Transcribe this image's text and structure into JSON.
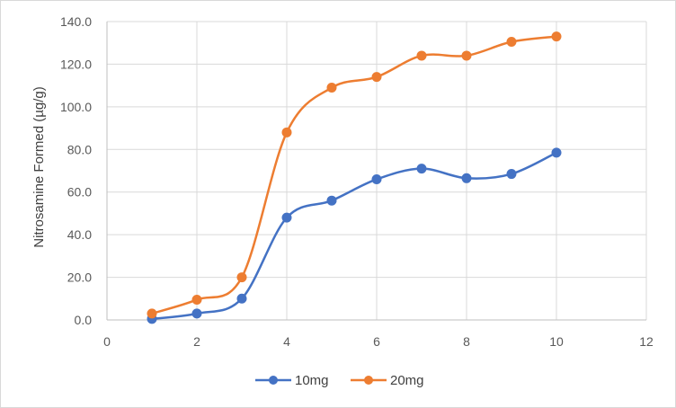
{
  "chart_data": {
    "type": "line",
    "title": "",
    "xlabel": "",
    "ylabel": "Nitrosamine Formed (µg/g)",
    "xlim": [
      0,
      12
    ],
    "ylim": [
      0,
      140
    ],
    "x_ticks": [
      0,
      2,
      4,
      6,
      8,
      10,
      12
    ],
    "x_tick_labels": [
      "0",
      "2",
      "4",
      "6",
      "8",
      "10",
      "12"
    ],
    "y_ticks": [
      0,
      20,
      40,
      60,
      80,
      100,
      120,
      140
    ],
    "y_tick_labels": [
      "0.0",
      "20.0",
      "40.0",
      "60.0",
      "80.0",
      "100.0",
      "120.0",
      "140.0"
    ],
    "grid": "vertical and horizontal major gridlines",
    "legend_position": "bottom",
    "smooth": true,
    "series": [
      {
        "name": "10mg",
        "color": "#4472C4",
        "points": [
          [
            1,
            0.5
          ],
          [
            2,
            3.0
          ],
          [
            3,
            10.0
          ],
          [
            4,
            48.0
          ],
          [
            5,
            56.0
          ],
          [
            6,
            66.0
          ],
          [
            7,
            71.0
          ],
          [
            8,
            66.5
          ],
          [
            9,
            68.5
          ],
          [
            10,
            78.5
          ]
        ]
      },
      {
        "name": "20mg",
        "color": "#ED7D31",
        "points": [
          [
            1,
            3.0
          ],
          [
            2,
            9.5
          ],
          [
            3,
            20.0
          ],
          [
            4,
            88.0
          ],
          [
            5,
            109.0
          ],
          [
            6,
            114.0
          ],
          [
            7,
            124.0
          ],
          [
            8,
            124.0
          ],
          [
            9,
            130.5
          ],
          [
            10,
            133.0
          ]
        ]
      }
    ]
  }
}
